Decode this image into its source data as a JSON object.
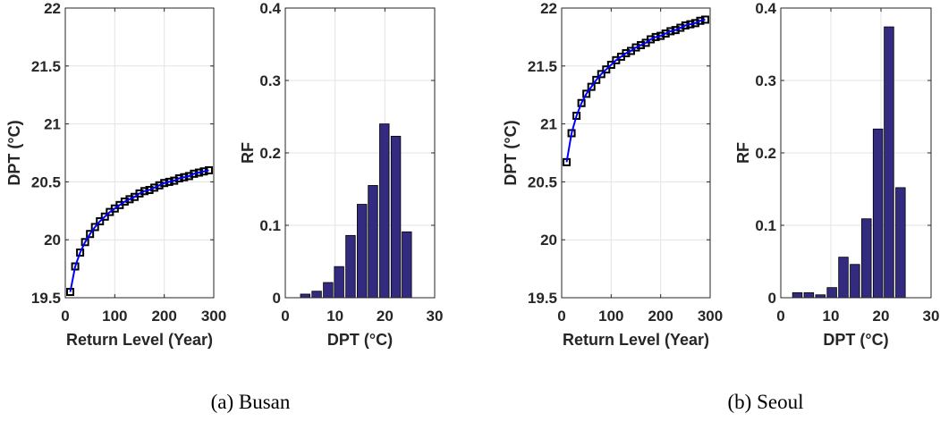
{
  "captions": {
    "a": "(a) Busan",
    "b": "(b) Seoul"
  },
  "colors": {
    "line": "#0000ff",
    "marker": "#000000",
    "bar": "#332b80",
    "grid": "#e3e3e3",
    "axis": "#262626"
  },
  "chart_data": [
    {
      "type": "line",
      "panel": "a",
      "xlabel": "Return Level (Year)",
      "ylabel": "DPT (°C)",
      "xlim": [
        0,
        300
      ],
      "ylim": [
        19.5,
        22
      ],
      "xticks": [
        0,
        100,
        200,
        300
      ],
      "yticks": [
        19.5,
        20,
        20.5,
        21,
        21.5,
        22
      ],
      "grid": true,
      "marker": "square",
      "x": [
        10,
        20,
        30,
        40,
        50,
        60,
        70,
        80,
        90,
        100,
        110,
        120,
        130,
        140,
        150,
        160,
        170,
        180,
        190,
        200,
        210,
        220,
        230,
        240,
        250,
        260,
        270,
        280,
        290
      ],
      "y": [
        19.55,
        19.77,
        19.89,
        19.98,
        20.05,
        20.11,
        20.16,
        20.2,
        20.24,
        20.27,
        20.3,
        20.33,
        20.35,
        20.37,
        20.4,
        20.42,
        20.43,
        20.45,
        20.47,
        20.49,
        20.5,
        20.51,
        20.53,
        20.54,
        20.55,
        20.57,
        20.58,
        20.59,
        20.6
      ]
    },
    {
      "type": "bar",
      "panel": "a",
      "xlabel": "DPT (°C)",
      "ylabel": "RF",
      "xlim": [
        0,
        30
      ],
      "ylim": [
        0,
        0.4
      ],
      "xticks": [
        0,
        10,
        20,
        30
      ],
      "yticks": [
        0,
        0.1,
        0.2,
        0.3,
        0.4
      ],
      "grid": true,
      "x": [
        4.0,
        6.3,
        8.6,
        10.8,
        13.1,
        15.4,
        17.6,
        19.9,
        22.2,
        24.4
      ],
      "values": [
        0.005,
        0.009,
        0.021,
        0.043,
        0.086,
        0.129,
        0.155,
        0.24,
        0.223,
        0.091
      ]
    },
    {
      "type": "line",
      "panel": "b",
      "xlabel": "Return Level (Year)",
      "ylabel": "DPT (°C)",
      "xlim": [
        0,
        300
      ],
      "ylim": [
        19.5,
        22
      ],
      "xticks": [
        0,
        100,
        200,
        300
      ],
      "yticks": [
        19.5,
        20,
        20.5,
        21,
        21.5,
        22
      ],
      "grid": true,
      "marker": "square",
      "x": [
        10,
        20,
        30,
        40,
        50,
        60,
        70,
        80,
        90,
        100,
        110,
        120,
        130,
        140,
        150,
        160,
        170,
        180,
        190,
        200,
        210,
        220,
        230,
        240,
        250,
        260,
        270,
        280,
        290
      ],
      "y": [
        20.67,
        20.92,
        21.07,
        21.18,
        21.26,
        21.32,
        21.38,
        21.43,
        21.47,
        21.51,
        21.55,
        21.58,
        21.61,
        21.63,
        21.66,
        21.68,
        21.7,
        21.73,
        21.75,
        21.76,
        21.78,
        21.8,
        21.81,
        21.83,
        21.85,
        21.86,
        21.87,
        21.89,
        21.9
      ]
    },
    {
      "type": "bar",
      "panel": "b",
      "xlabel": "DPT (°C)",
      "ylabel": "RF",
      "xlim": [
        0,
        30
      ],
      "ylim": [
        0,
        0.4
      ],
      "xticks": [
        0,
        10,
        20,
        30
      ],
      "yticks": [
        0,
        0.1,
        0.2,
        0.3,
        0.4
      ],
      "grid": true,
      "x": [
        3.3,
        5.6,
        7.9,
        10.2,
        12.5,
        14.8,
        17.1,
        19.4,
        21.6,
        23.9
      ],
      "values": [
        0.007,
        0.007,
        0.004,
        0.014,
        0.056,
        0.046,
        0.109,
        0.233,
        0.374,
        0.152
      ]
    }
  ]
}
